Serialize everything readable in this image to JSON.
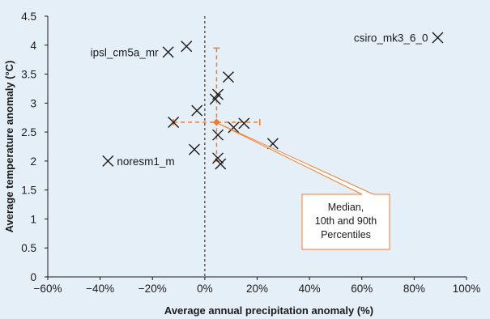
{
  "chart_data": {
    "type": "scatter",
    "title": "",
    "xlabel": "Average annual precipitation anomaly (%)",
    "ylabel": "Average temperature anomaly (°C)",
    "xlim": [
      -60,
      100
    ],
    "ylim": [
      0,
      4.5
    ],
    "x_ticks": [
      -60,
      -40,
      -20,
      0,
      20,
      40,
      60,
      80,
      100
    ],
    "x_tick_labels": [
      "−60%",
      "−40%",
      "−20%",
      "0%",
      "20%",
      "40%",
      "60%",
      "80%",
      "100%"
    ],
    "y_ticks": [
      0,
      0.5,
      1,
      1.5,
      2,
      2.5,
      3,
      3.5,
      4,
      4.5
    ],
    "y_tick_labels": [
      "0",
      "0.5",
      "1",
      "1.5",
      "2",
      "2.5",
      "3",
      "3.5",
      "4",
      "4.5"
    ],
    "grid": false,
    "zero_line": {
      "x": 0,
      "style": "dashed"
    },
    "points": [
      {
        "x": -7,
        "y": 3.98
      },
      {
        "x": -14,
        "y": 3.88
      },
      {
        "x": 9,
        "y": 3.45
      },
      {
        "x": 5,
        "y": 3.15
      },
      {
        "x": 4,
        "y": 3.07
      },
      {
        "x": -3,
        "y": 2.87
      },
      {
        "x": -12,
        "y": 2.67
      },
      {
        "x": 11,
        "y": 2.58
      },
      {
        "x": 15,
        "y": 2.65
      },
      {
        "x": 5,
        "y": 2.45
      },
      {
        "x": 26,
        "y": 2.3
      },
      {
        "x": -4,
        "y": 2.2
      },
      {
        "x": 5,
        "y": 2.05
      },
      {
        "x": 6,
        "y": 1.95
      },
      {
        "x": 89,
        "y": 4.13
      },
      {
        "x": -37,
        "y": 2.0
      }
    ],
    "point_labels": [
      {
        "text": "ipsl_cm5a_mr",
        "x": -14,
        "y": 3.88,
        "side": "left"
      },
      {
        "text": "csiro_mk3_6_0",
        "x": 89,
        "y": 4.13,
        "side": "left"
      },
      {
        "text": "noresm1_m",
        "x": -37,
        "y": 2.0,
        "side": "right"
      }
    ],
    "median": {
      "x": 4.5,
      "y": 2.67
    },
    "percentile_range": {
      "x": [
        -12,
        21
      ],
      "y": [
        2.0,
        3.95
      ]
    },
    "annotation": {
      "lines": [
        "Median,",
        "10th and 90th",
        "Percentiles"
      ]
    },
    "colors": {
      "markers": "#1a1a1a",
      "median": "#f07d2e",
      "callout_border": "#f07d2e",
      "background": "#e5eff7",
      "callout_fill": "#ffffff"
    }
  }
}
